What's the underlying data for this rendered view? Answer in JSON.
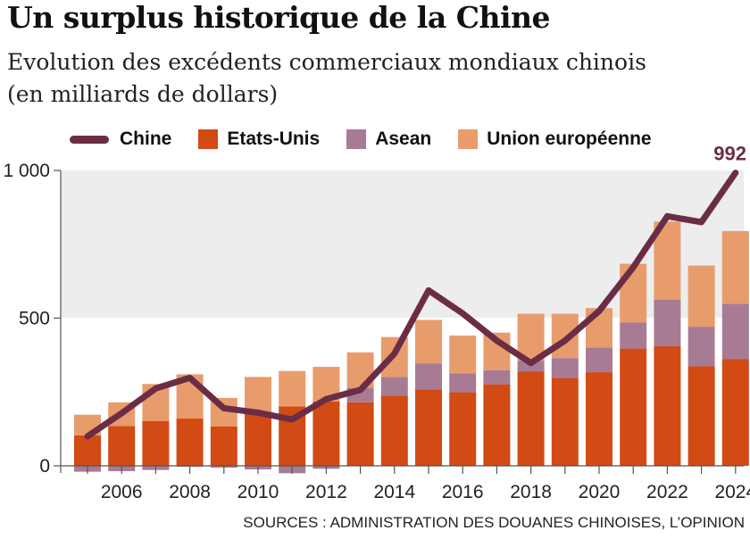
{
  "header": {
    "title": "Un surplus historique de la Chine",
    "subtitle_line1": "Evolution des excédents commerciaux mondiaux chinois",
    "subtitle_line2": "(en milliards de dollars)"
  },
  "source": "SOURCES : ADMINISTRATION DES DOUANES CHINOISES, L’OPINION",
  "colors": {
    "chine": "#6b2d45",
    "etats_unis": "#d24a14",
    "asean": "#a87b95",
    "ue": "#e89c6c",
    "band": "#ededed"
  },
  "chart_data": {
    "type": "bar",
    "x": [
      2005,
      2006,
      2007,
      2008,
      2009,
      2010,
      2011,
      2012,
      2013,
      2014,
      2015,
      2016,
      2017,
      2018,
      2019,
      2020,
      2021,
      2022,
      2023,
      2024
    ],
    "xticks": [
      "2006",
      "2008",
      "2010",
      "2012",
      "2014",
      "2016",
      "2018",
      "2020",
      "2022",
      "2024"
    ],
    "yticks": [
      "0",
      "500",
      "1 000"
    ],
    "ylim": [
      -20,
      1000
    ],
    "grid": false,
    "legend_position": "top",
    "stacked_series": [
      {
        "name": "Etats-Unis",
        "values": [
          103,
          135,
          152,
          160,
          133,
          181,
          201,
          218,
          215,
          237,
          259,
          249,
          276,
          320,
          298,
          317,
          397,
          405,
          337,
          361
        ]
      },
      {
        "name": "Asean",
        "values": [
          -20,
          -18,
          -14,
          -3,
          -6,
          -12,
          -25,
          -10,
          49,
          64,
          88,
          64,
          48,
          36,
          67,
          84,
          88,
          158,
          134,
          188
        ]
      },
      {
        "name": "Union européenne",
        "values": [
          70,
          80,
          125,
          150,
          97,
          120,
          120,
          117,
          120,
          135,
          147,
          128,
          127,
          159,
          150,
          133,
          199,
          264,
          207,
          246
        ]
      }
    ],
    "line_series": {
      "name": "Chine",
      "values": [
        100,
        178,
        262,
        298,
        195,
        180,
        157,
        226,
        257,
        380,
        594,
        516,
        424,
        348,
        424,
        524,
        672,
        845,
        825,
        992
      ],
      "end_label": "992"
    }
  },
  "legend": [
    {
      "name": "Chine",
      "kind": "line",
      "color": "#6b2d45"
    },
    {
      "name": "Etats-Unis",
      "kind": "box",
      "color": "#d24a14"
    },
    {
      "name": "Asean",
      "kind": "box",
      "color": "#a87b95"
    },
    {
      "name": "Union européenne",
      "kind": "box",
      "color": "#e89c6c"
    }
  ]
}
